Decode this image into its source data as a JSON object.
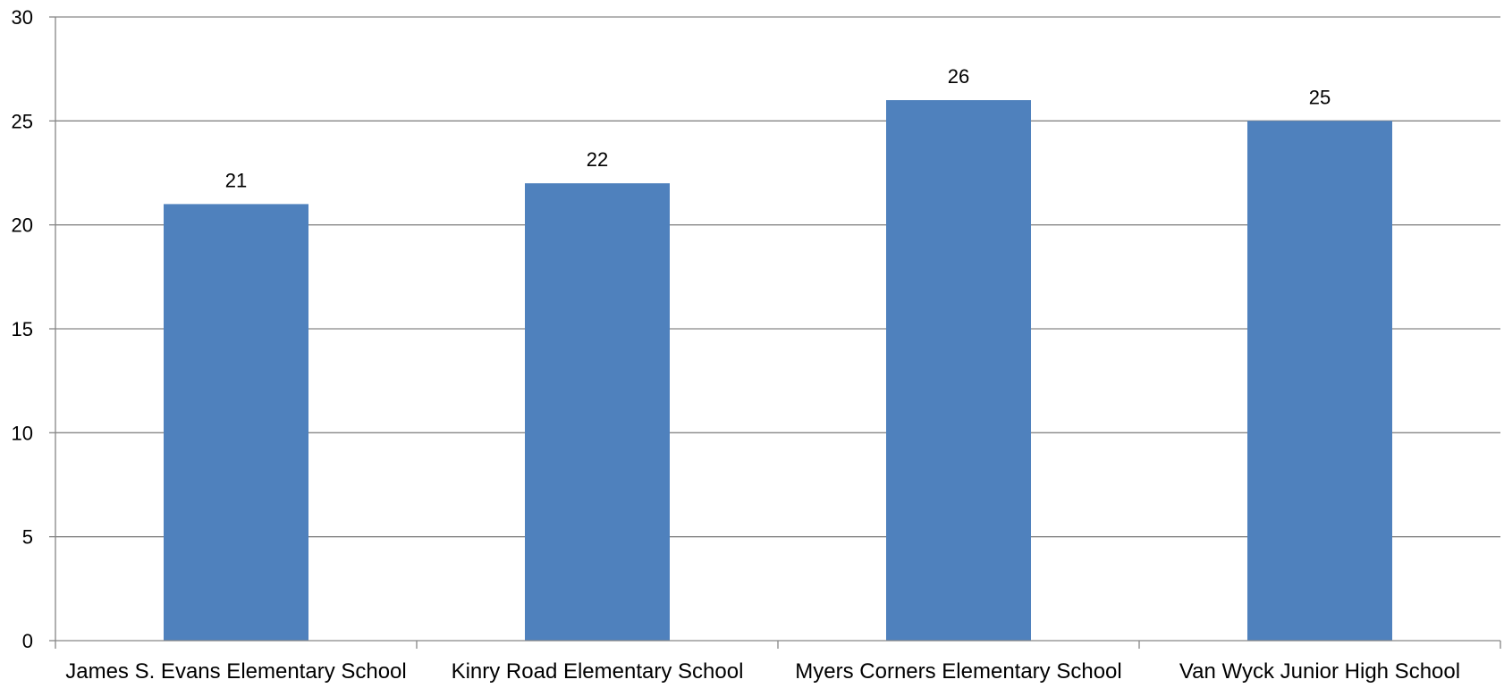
{
  "chart_data": {
    "type": "bar",
    "title": "",
    "xlabel": "",
    "ylabel": "",
    "categories": [
      "James S. Evans Elementary School",
      "Kinry Road Elementary School",
      "Myers Corners Elementary School",
      "Van Wyck Junior High School"
    ],
    "values": [
      21,
      22,
      26,
      25
    ],
    "data_labels": [
      "21",
      "22",
      "26",
      "25"
    ],
    "ylim": [
      0,
      30
    ],
    "yticks": [
      0,
      5,
      10,
      15,
      20,
      25,
      30
    ],
    "ytick_labels": [
      "0",
      "5",
      "10",
      "15",
      "20",
      "25",
      "30"
    ],
    "grid": true,
    "legend": "none",
    "colors": {
      "bar": "#4f81bd",
      "grid": "#868686",
      "axis": "#868686"
    }
  }
}
